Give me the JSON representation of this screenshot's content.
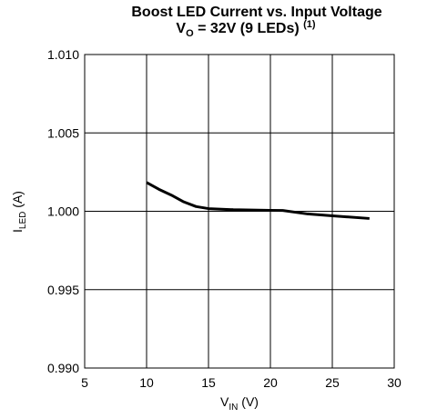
{
  "chart_data": {
    "type": "line",
    "title": "Boost LED Current vs. Input Voltage",
    "subtitle": {
      "main": "V",
      "sub": "O",
      "rest": " = 32V (9 LEDs) ",
      "sup": "(1)"
    },
    "x_label": {
      "main": "V",
      "sub": "IN",
      "rest": " (V)"
    },
    "y_label": {
      "main": "I",
      "sub": "LED",
      "rest": " (A)"
    },
    "x": [
      10,
      11,
      12,
      13,
      14,
      15,
      17,
      20,
      21,
      23,
      25,
      28
    ],
    "values": [
      1.00184,
      1.0014,
      1.00103,
      1.0006,
      1.0003,
      1.00017,
      1.0001,
      1.00006,
      1.00005,
      0.99983,
      0.99971,
      0.99954
    ],
    "color": "#000000",
    "xlim": [
      5,
      30
    ],
    "xticks": [
      5,
      10,
      15,
      20,
      25,
      30
    ],
    "ylim": [
      0.99,
      1.01
    ],
    "yticks": [
      {
        "value": 0.99,
        "label": "0.990"
      },
      {
        "value": 0.995,
        "label": "0.995"
      },
      {
        "value": 1.0,
        "label": "1.000"
      },
      {
        "value": 1.005,
        "label": "1.005"
      },
      {
        "value": 1.01,
        "label": "1.010"
      }
    ],
    "grid": true
  }
}
